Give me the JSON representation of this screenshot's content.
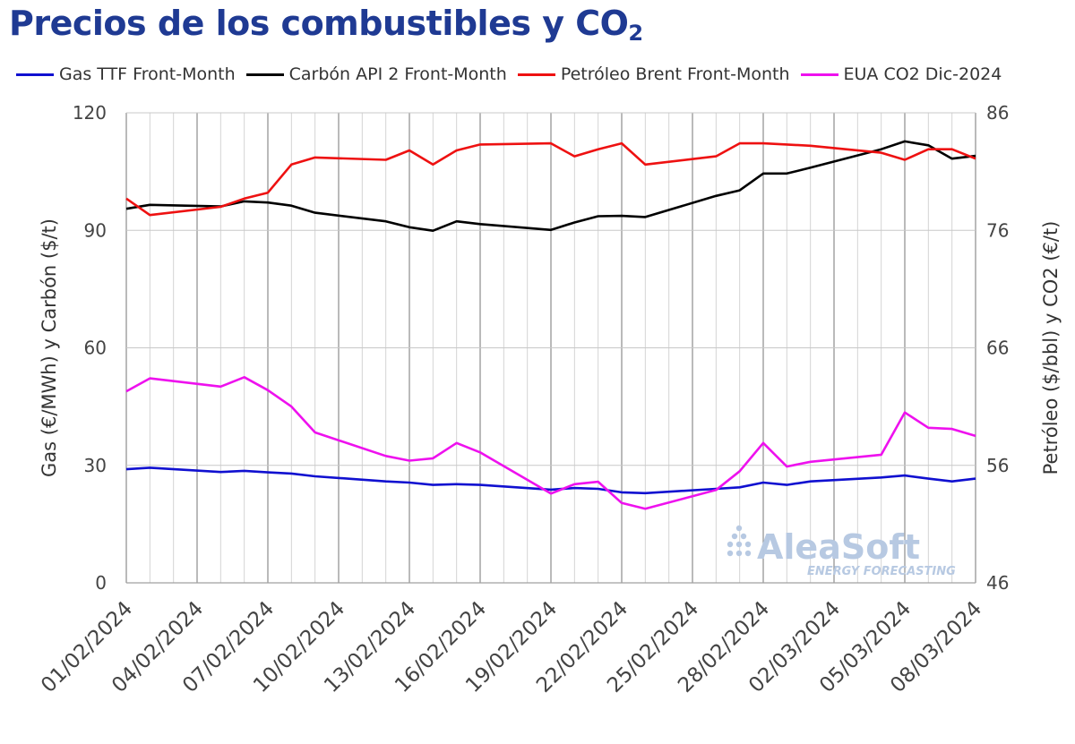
{
  "title_main": "Precios de los combustibles y CO",
  "title_sub": "2",
  "legend": [
    {
      "label": "Gas TTF Front-Month",
      "color": "#1010d0"
    },
    {
      "label": "Carbón API 2 Front-Month",
      "color": "#000000"
    },
    {
      "label": "Petróleo Brent Front-Month",
      "color": "#ee1111"
    },
    {
      "label": "EUA CO2 Dic-2024",
      "color": "#ee11ee"
    }
  ],
  "watermark": {
    "brand": "AleaSoft",
    "tagline": "ENERGY FORECASTING"
  },
  "chart_data": {
    "type": "line",
    "ylabel_left": "Gas (€/MWh) y Carbón ($/t)",
    "ylabel_right": "Petróleo ($/bbl) y CO2 (€/t)",
    "ylim_left": [
      0,
      120
    ],
    "ylim_right": [
      46,
      86
    ],
    "yticks_left": [
      "0",
      "30",
      "60",
      "90",
      "120"
    ],
    "yticks_right": [
      "46",
      "56",
      "66",
      "76",
      "86"
    ],
    "xlim": [
      "01/02/2024",
      "08/03/2024"
    ],
    "xticks": [
      "01/02/2024",
      "04/02/2024",
      "07/02/2024",
      "10/02/2024",
      "13/02/2024",
      "16/02/2024",
      "19/02/2024",
      "22/02/2024",
      "25/02/2024",
      "28/02/2024",
      "02/03/2024",
      "05/03/2024",
      "08/03/2024"
    ],
    "grid": true,
    "legend_position": "top",
    "series": [
      {
        "name": "Gas TTF Front-Month",
        "axis": "left",
        "color": "#1010d0",
        "x": [
          "01/02/2024",
          "02/02/2024",
          "05/02/2024",
          "06/02/2024",
          "07/02/2024",
          "08/02/2024",
          "09/02/2024",
          "12/02/2024",
          "13/02/2024",
          "14/02/2024",
          "15/02/2024",
          "16/02/2024",
          "19/02/2024",
          "20/02/2024",
          "21/02/2024",
          "22/02/2024",
          "23/02/2024",
          "26/02/2024",
          "27/02/2024",
          "28/02/2024",
          "29/02/2024",
          "01/03/2024",
          "04/03/2024",
          "05/03/2024",
          "06/03/2024",
          "07/03/2024",
          "08/03/2024"
        ],
        "values": [
          29.0,
          29.4,
          28.3,
          28.6,
          28.2,
          27.9,
          27.2,
          25.9,
          25.6,
          25.0,
          25.2,
          25.0,
          23.8,
          24.2,
          24.0,
          23.1,
          22.9,
          24.0,
          24.4,
          25.6,
          25.0,
          25.9,
          26.9,
          27.4,
          26.6,
          25.9,
          26.6
        ]
      },
      {
        "name": "Carbón API 2 Front-Month",
        "axis": "left",
        "color": "#000000",
        "x": [
          "01/02/2024",
          "02/02/2024",
          "05/02/2024",
          "06/02/2024",
          "07/02/2024",
          "08/02/2024",
          "09/02/2024",
          "12/02/2024",
          "13/02/2024",
          "14/02/2024",
          "15/02/2024",
          "16/02/2024",
          "19/02/2024",
          "20/02/2024",
          "21/02/2024",
          "22/02/2024",
          "23/02/2024",
          "26/02/2024",
          "27/02/2024",
          "28/02/2024",
          "29/02/2024",
          "01/03/2024",
          "04/03/2024",
          "05/03/2024",
          "06/03/2024",
          "07/03/2024",
          "08/03/2024"
        ],
        "values": [
          95.5,
          96.5,
          96.1,
          97.4,
          97.1,
          96.3,
          94.5,
          92.3,
          90.8,
          89.9,
          92.3,
          91.6,
          90.1,
          92.0,
          93.6,
          93.7,
          93.4,
          98.8,
          100.2,
          104.5,
          104.5,
          106.0,
          110.7,
          112.7,
          111.7,
          108.3,
          109.0
        ]
      },
      {
        "name": "Petróleo Brent Front-Month",
        "axis": "right",
        "color": "#ee1111",
        "x": [
          "01/02/2024",
          "02/02/2024",
          "05/02/2024",
          "06/02/2024",
          "07/02/2024",
          "08/02/2024",
          "09/02/2024",
          "12/02/2024",
          "13/02/2024",
          "14/02/2024",
          "15/02/2024",
          "16/02/2024",
          "19/02/2024",
          "20/02/2024",
          "21/02/2024",
          "22/02/2024",
          "23/02/2024",
          "26/02/2024",
          "27/02/2024",
          "28/02/2024",
          "29/02/2024",
          "01/03/2024",
          "04/03/2024",
          "05/03/2024",
          "06/03/2024",
          "07/03/2024",
          "08/03/2024"
        ],
        "values": [
          78.7,
          77.3,
          78.0,
          78.7,
          79.2,
          81.6,
          82.2,
          82.0,
          82.8,
          81.6,
          82.8,
          83.3,
          83.4,
          82.3,
          82.9,
          83.4,
          81.6,
          82.3,
          83.4,
          83.4,
          83.3,
          83.2,
          82.6,
          82.0,
          82.9,
          82.9,
          82.1
        ]
      },
      {
        "name": "EUA CO2 Dic-2024",
        "axis": "right",
        "color": "#ee11ee",
        "x": [
          "01/02/2024",
          "02/02/2024",
          "05/02/2024",
          "06/02/2024",
          "07/02/2024",
          "08/02/2024",
          "09/02/2024",
          "12/02/2024",
          "13/02/2024",
          "14/02/2024",
          "15/02/2024",
          "16/02/2024",
          "19/02/2024",
          "20/02/2024",
          "21/02/2024",
          "22/02/2024",
          "23/02/2024",
          "26/02/2024",
          "27/02/2024",
          "28/02/2024",
          "29/02/2024",
          "01/03/2024",
          "04/03/2024",
          "05/03/2024",
          "06/03/2024",
          "07/03/2024",
          "08/03/2024"
        ],
        "values": [
          62.3,
          63.4,
          62.7,
          63.5,
          62.4,
          61.0,
          58.8,
          56.8,
          56.4,
          56.6,
          57.9,
          57.1,
          53.6,
          54.4,
          54.6,
          52.8,
          52.3,
          53.9,
          55.5,
          57.9,
          55.9,
          56.3,
          56.9,
          60.5,
          59.2,
          59.1,
          58.5
        ]
      }
    ]
  }
}
